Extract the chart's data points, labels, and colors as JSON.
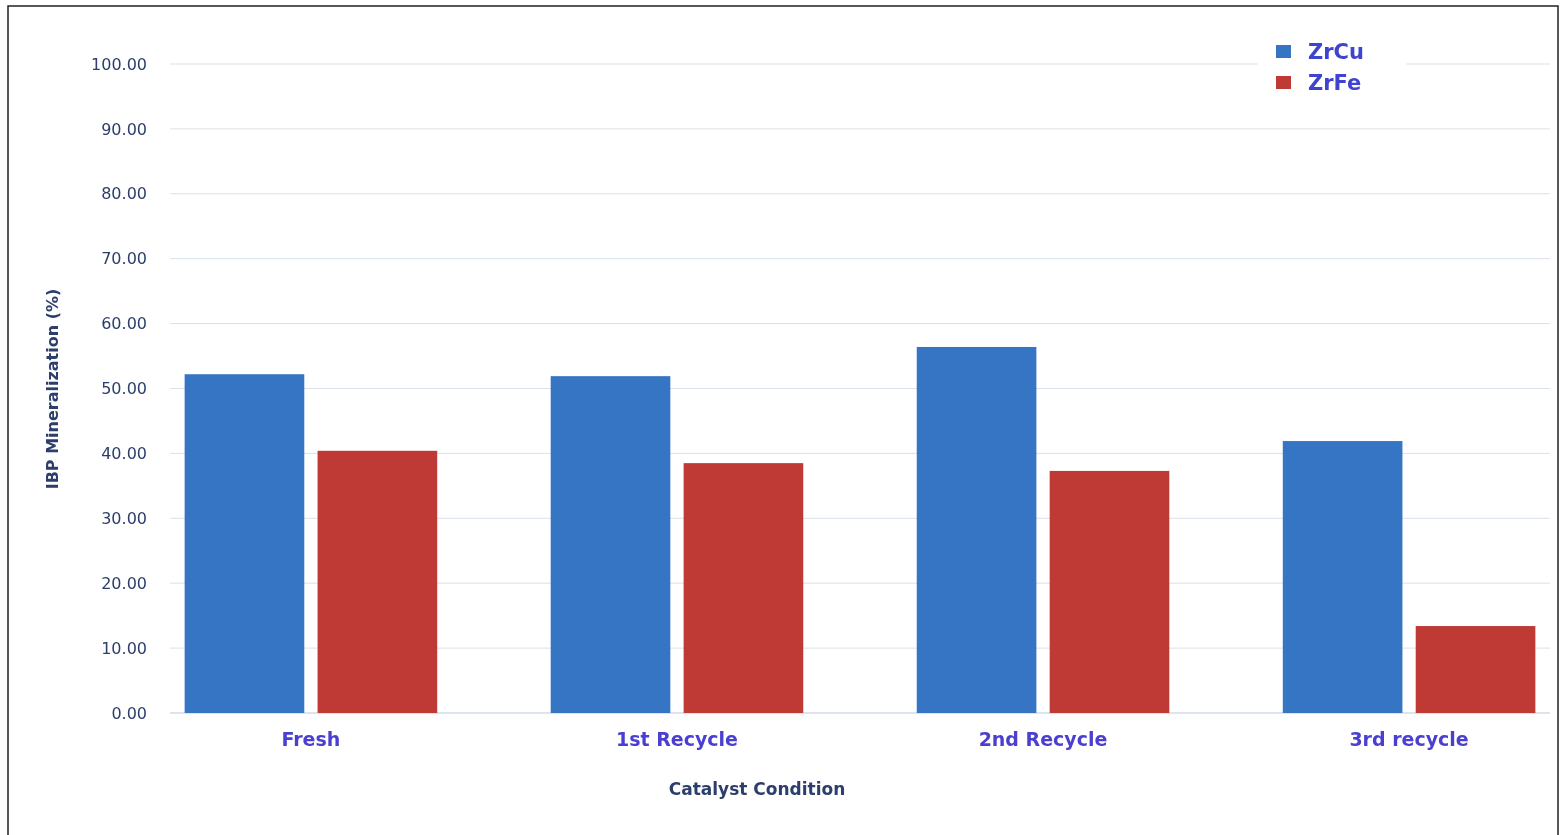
{
  "chart_data": {
    "type": "bar",
    "xlabel": "Catalyst Condition",
    "ylabel": "IBP Mineralization (%)",
    "categories": [
      "Fresh",
      "1st Recycle",
      "2nd Recycle",
      "3rd recycle"
    ],
    "series": [
      {
        "name": "ZrCu",
        "color": "#3674c4",
        "values": [
          52.2,
          51.9,
          56.4,
          41.9
        ]
      },
      {
        "name": "ZrFe",
        "color": "#c03a35",
        "values": [
          40.4,
          38.5,
          37.3,
          13.4
        ]
      }
    ],
    "ylim": [
      0,
      100
    ],
    "yticks": [
      {
        "value": 0,
        "label": "0.00"
      },
      {
        "value": 10,
        "label": "10.00"
      },
      {
        "value": 20,
        "label": "20.00"
      },
      {
        "value": 30,
        "label": "30.00"
      },
      {
        "value": 40,
        "label": "40.00"
      },
      {
        "value": 50,
        "label": "50.00"
      },
      {
        "value": 60,
        "label": "60.00"
      },
      {
        "value": 70,
        "label": "70.00"
      },
      {
        "value": 80,
        "label": "80.00"
      },
      {
        "value": 90,
        "label": "90.00"
      },
      {
        "value": 100,
        "label": "100.00"
      }
    ],
    "grid": "y",
    "legend": "top right"
  }
}
